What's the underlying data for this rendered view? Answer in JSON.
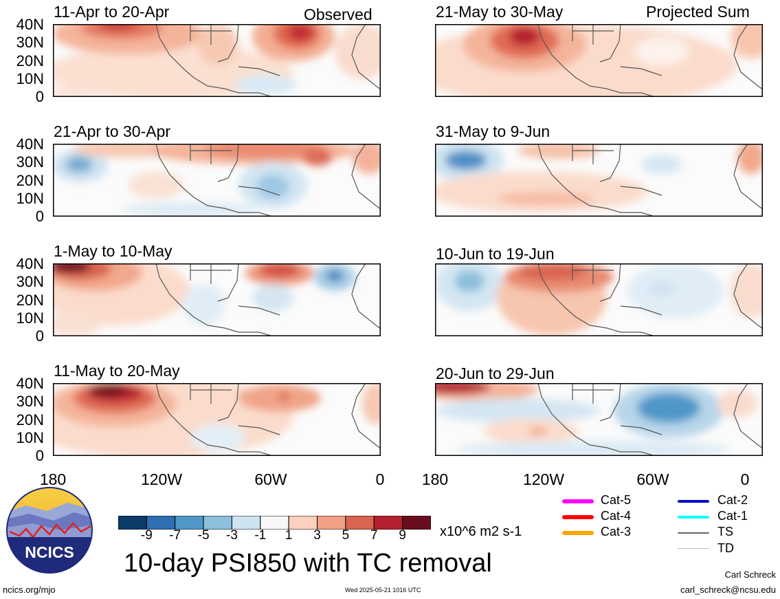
{
  "title": "10-day PSI850 with TC removal",
  "labels": {
    "observed": "Observed",
    "projected": "Projected Sum"
  },
  "panels_left": [
    "11-Apr to 20-Apr",
    "21-Apr to 30-Apr",
    "1-May to 10-May",
    "11-May to 20-May"
  ],
  "panels_right": [
    "21-May to 30-May",
    "31-May to 9-Jun",
    "10-Jun to 19-Jun",
    "20-Jun to 29-Jun"
  ],
  "lat_ticks": [
    "40N",
    "30N",
    "20N",
    "10N",
    "0"
  ],
  "lon_ticks": [
    "180",
    "120W",
    "60W",
    "0"
  ],
  "colorbar": {
    "ticks": [
      "-9",
      "-7",
      "-5",
      "-3",
      "-1",
      "1",
      "3",
      "5",
      "7",
      "9"
    ],
    "units": "x10^6 m2 s-1",
    "colors": [
      "#0b3a66",
      "#2d6fb0",
      "#4f97c9",
      "#8cc0de",
      "#cde3f0",
      "#f7f7f7",
      "#fbd0bc",
      "#f1a085",
      "#d9644f",
      "#b5212e",
      "#6a0d1e"
    ]
  },
  "legend": [
    {
      "label": "Cat-5",
      "color": "#ff00ff"
    },
    {
      "label": "Cat-4",
      "color": "#ff0000"
    },
    {
      "label": "Cat-3",
      "color": "#ffa500"
    },
    {
      "label": "Cat-2",
      "color": "#0000cc"
    },
    {
      "label": "Cat-1",
      "color": "#00ffff"
    },
    {
      "label": "TS",
      "color": "#666666"
    },
    {
      "label": "TD",
      "color": "#bbbbbb"
    }
  ],
  "logo_text": "NCICS",
  "footer": {
    "url": "ncics.org/mjo",
    "timestamp": "Wed 2025-05-21 1016 UTC",
    "author": "Carl Schreck",
    "email": "carl_schreck@ncsu.edu"
  }
}
